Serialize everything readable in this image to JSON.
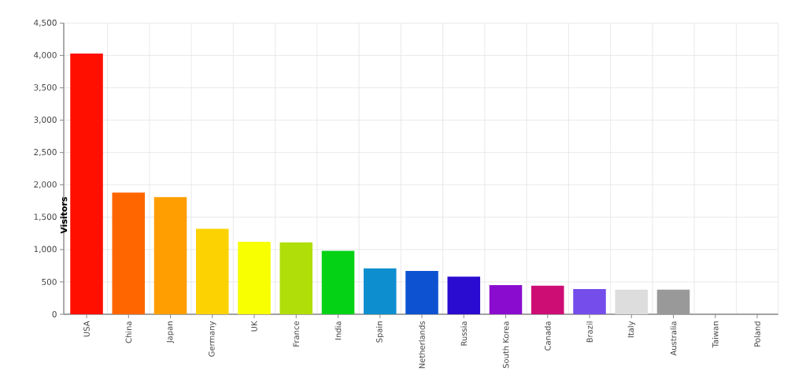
{
  "chart_data": {
    "type": "bar",
    "ylabel": "Visitors",
    "categories": [
      "USA",
      "China",
      "Japan",
      "Germany",
      "UK",
      "France",
      "India",
      "Spain",
      "Netherlands",
      "Russia",
      "South Korea",
      "Canada",
      "Brazil",
      "Italy",
      "Australia",
      "Taiwan",
      "Poland"
    ],
    "values": [
      4030,
      1880,
      1810,
      1320,
      1120,
      1110,
      980,
      710,
      670,
      580,
      450,
      440,
      390,
      380,
      380,
      0,
      0
    ],
    "colors": [
      "#ff0f00",
      "#ff6600",
      "#ff9e01",
      "#fcd202",
      "#f8ff01",
      "#b0de09",
      "#04d215",
      "#0d8ecf",
      "#0d52d1",
      "#2a0cd0",
      "#8a0ccf",
      "#cd0d74",
      "#754deb",
      "#dddddd",
      "#999999",
      null,
      null
    ],
    "ylim": [
      0,
      4500
    ],
    "yticks": [
      0,
      500,
      {
        "value": 1000,
        "label": "1,000"
      },
      {
        "value": 1500,
        "label": "1,500"
      },
      {
        "value": 2000,
        "label": "2,000"
      },
      {
        "value": 2500,
        "label": "2,500"
      },
      {
        "value": 3000,
        "label": "3,000"
      },
      {
        "value": 3500,
        "label": "3,500"
      },
      {
        "value": 4000,
        "label": "4,000"
      },
      {
        "value": 4500,
        "label": "4,500"
      }
    ],
    "grid": true
  }
}
